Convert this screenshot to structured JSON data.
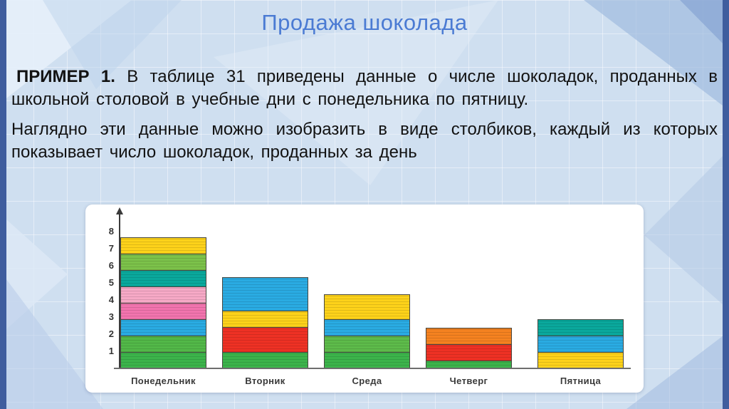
{
  "slide": {
    "title": "Продажа шоколада",
    "example_label": "ПРИМЕР 1.",
    "paragraph1": " В таблице 31 приведены данные о числе шоколадок, проданных в школьной столовой в учебные дни с понедельника по пятницу.",
    "paragraph2": "Наглядно эти данные можно изобразить в виде столбиков, каждый из которых показывает число шоколадок, проданных за день"
  },
  "colors": {
    "title_text": "#4b7bd3",
    "edge_bars": "#3f5d9e",
    "slide_background": "#cfdff0",
    "chart_card": "#ffffff",
    "axis": "#3a3a3a"
  },
  "chart_data": {
    "type": "bar",
    "variant": "stacked-unit-segments",
    "title": "",
    "xlabel": "",
    "ylabel": "",
    "categories": [
      "Понедельник",
      "Вторник",
      "Среда",
      "Четверг",
      "Пятница"
    ],
    "values": [
      8,
      5.5,
      4.5,
      2.5,
      3
    ],
    "y_ticks": [
      8,
      7,
      6,
      5,
      4,
      3,
      2,
      1
    ],
    "ylim": [
      0,
      9
    ],
    "grid": false,
    "legend": false,
    "bars": [
      {
        "label": "Понедельник",
        "total": 8,
        "segments_bottom_to_top": [
          {
            "h": 1,
            "color": "#3cb44b"
          },
          {
            "h": 1,
            "color": "#52b848"
          },
          {
            "h": 1,
            "color": "#2aabe2"
          },
          {
            "h": 1,
            "color": "#f274ae"
          },
          {
            "h": 1,
            "color": "#f6a9c6"
          },
          {
            "h": 1,
            "color": "#0aa89c"
          },
          {
            "h": 1,
            "color": "#7cc24a"
          },
          {
            "h": 1,
            "color": "#fdd21a"
          }
        ]
      },
      {
        "label": "Вторник",
        "total": 5.5,
        "segments_bottom_to_top": [
          {
            "h": 1,
            "color": "#3cb44b"
          },
          {
            "h": 1.5,
            "color": "#ee3124"
          },
          {
            "h": 1,
            "color": "#fdd21a"
          },
          {
            "h": 2,
            "color": "#2aabe2"
          }
        ]
      },
      {
        "label": "Среда",
        "total": 4.5,
        "segments_bottom_to_top": [
          {
            "h": 1,
            "color": "#3cb44b"
          },
          {
            "h": 1,
            "color": "#5dbb4a"
          },
          {
            "h": 1,
            "color": "#2aabe2"
          },
          {
            "h": 1.5,
            "color": "#fdd21a"
          }
        ]
      },
      {
        "label": "Четверг",
        "total": 2.5,
        "segments_bottom_to_top": [
          {
            "h": 0.5,
            "color": "#3cb44b"
          },
          {
            "h": 1,
            "color": "#ee3124"
          },
          {
            "h": 1,
            "color": "#f58220"
          }
        ]
      },
      {
        "label": "Пятница",
        "total": 3,
        "segments_bottom_to_top": [
          {
            "h": 1,
            "color": "#fdd21a"
          },
          {
            "h": 1,
            "color": "#2aabe2"
          },
          {
            "h": 1,
            "color": "#0aa89c"
          }
        ]
      }
    ]
  }
}
